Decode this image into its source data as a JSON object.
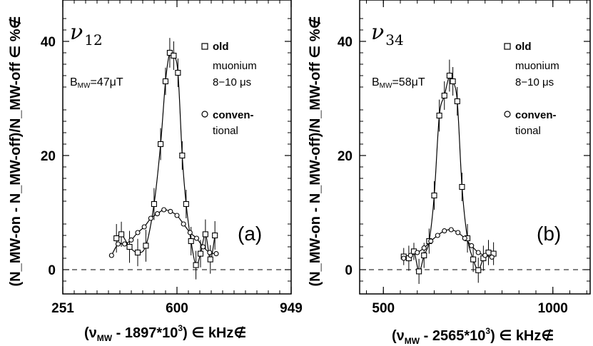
{
  "chart_data": [
    {
      "type": "scatter",
      "transition": "ν",
      "transition_sub": "12",
      "field_label": "B",
      "field_sub": "MW",
      "field_value": "=47μT",
      "panel_tag": "(a)",
      "xlabel_main": "(ν",
      "xlabel_sub": "MW",
      "xlabel_rest": " - 1897*10",
      "xlabel_sup": "3",
      "xlabel_unit": ") ∈ kHz∉",
      "ylabel": "(N_MW-on - N_MW-off)/N_MW-off ∈ %∉",
      "xlim": [
        251,
        949
      ],
      "ylim": [
        -4,
        47
      ],
      "xticks": [
        "251",
        "600",
        "949"
      ],
      "yticks": [
        "0",
        "20",
        "40"
      ],
      "legend": [
        {
          "marker": "square",
          "lines": [
            "old",
            "muonium",
            "8−10 μs"
          ]
        },
        {
          "marker": "circle",
          "lines": [
            "conven-",
            "tional"
          ]
        }
      ],
      "series": [
        {
          "name": "old muonium 8−10 μs",
          "marker": "square",
          "x": [
            415,
            430,
            455,
            480,
            505,
            530,
            550,
            565,
            578,
            590,
            603,
            616,
            628,
            643,
            658,
            672,
            687,
            702,
            716
          ],
          "y": [
            5.5,
            6.2,
            4.0,
            3.0,
            4.2,
            11.5,
            22.0,
            33.0,
            38.0,
            37.5,
            34.5,
            20.0,
            11.5,
            5.0,
            0.8,
            2.8,
            6.2,
            1.8,
            6.0
          ],
          "err": [
            2.5,
            2.2,
            2.8,
            2.4,
            2.8,
            2.8,
            2.8,
            2.4,
            2.6,
            2.5,
            2.5,
            2.5,
            2.5,
            2.5,
            2.5,
            2.4,
            2.6,
            2.5,
            2.5
          ]
        },
        {
          "name": "conventional",
          "marker": "circle",
          "x": [
            400,
            420,
            440,
            460,
            480,
            500,
            520,
            540,
            560,
            580,
            600,
            620,
            640,
            660,
            680,
            700,
            720
          ],
          "y": [
            2.5,
            4.5,
            4.5,
            5.2,
            6.5,
            7.5,
            9.0,
            9.8,
            10.5,
            10.2,
            9.5,
            8.0,
            6.5,
            5.5,
            4.0,
            3.0,
            2.8
          ]
        }
      ]
    },
    {
      "type": "scatter",
      "transition": "ν",
      "transition_sub": "34",
      "field_label": "B",
      "field_sub": "MW",
      "field_value": "=58μT",
      "panel_tag": "(b)",
      "xlabel_main": "(ν",
      "xlabel_sub": "MW",
      "xlabel_rest": " - 2565*10",
      "xlabel_sup": "3",
      "xlabel_unit": ") ∈ kHz∉",
      "ylabel": "(N_MW-on - N_MW-off)/N_MW-off ∈ %∉",
      "xlim": [
        430,
        1110
      ],
      "ylim": [
        -4,
        47
      ],
      "xticks": [
        "500",
        "1000"
      ],
      "yticks": [
        "0",
        "20",
        "40"
      ],
      "legend": [
        {
          "marker": "square",
          "lines": [
            "old",
            "muonium",
            "8−10 μs"
          ]
        },
        {
          "marker": "circle",
          "lines": [
            "conven-",
            "tional"
          ]
        }
      ],
      "series": [
        {
          "name": "old muonium 8−10 μs",
          "marker": "square",
          "x": [
            560,
            575,
            590,
            605,
            620,
            635,
            650,
            665,
            680,
            695,
            705,
            718,
            732,
            748,
            765,
            780,
            795,
            810,
            825
          ],
          "y": [
            2.3,
            2.0,
            3.2,
            -0.3,
            2.5,
            5.0,
            13.0,
            27.0,
            30.5,
            34.0,
            33.0,
            29.5,
            14.5,
            5.5,
            1.8,
            -0.1,
            2.0,
            3.0,
            2.8
          ],
          "err": [
            1.5,
            2.2,
            1.5,
            2.2,
            2.2,
            2.2,
            2.5,
            2.8,
            2.5,
            2.8,
            2.5,
            2.5,
            2.5,
            2.5,
            2.2,
            2.2,
            2.2,
            2.2,
            2.0
          ]
        },
        {
          "name": "conventional",
          "marker": "circle",
          "x": [
            560,
            580,
            600,
            620,
            640,
            660,
            680,
            700,
            720,
            740,
            760,
            780,
            800,
            820
          ],
          "y": [
            2.0,
            2.5,
            3.0,
            3.8,
            5.0,
            6.0,
            6.8,
            7.0,
            6.5,
            5.5,
            4.2,
            3.0,
            2.5,
            2.2
          ]
        }
      ]
    }
  ]
}
